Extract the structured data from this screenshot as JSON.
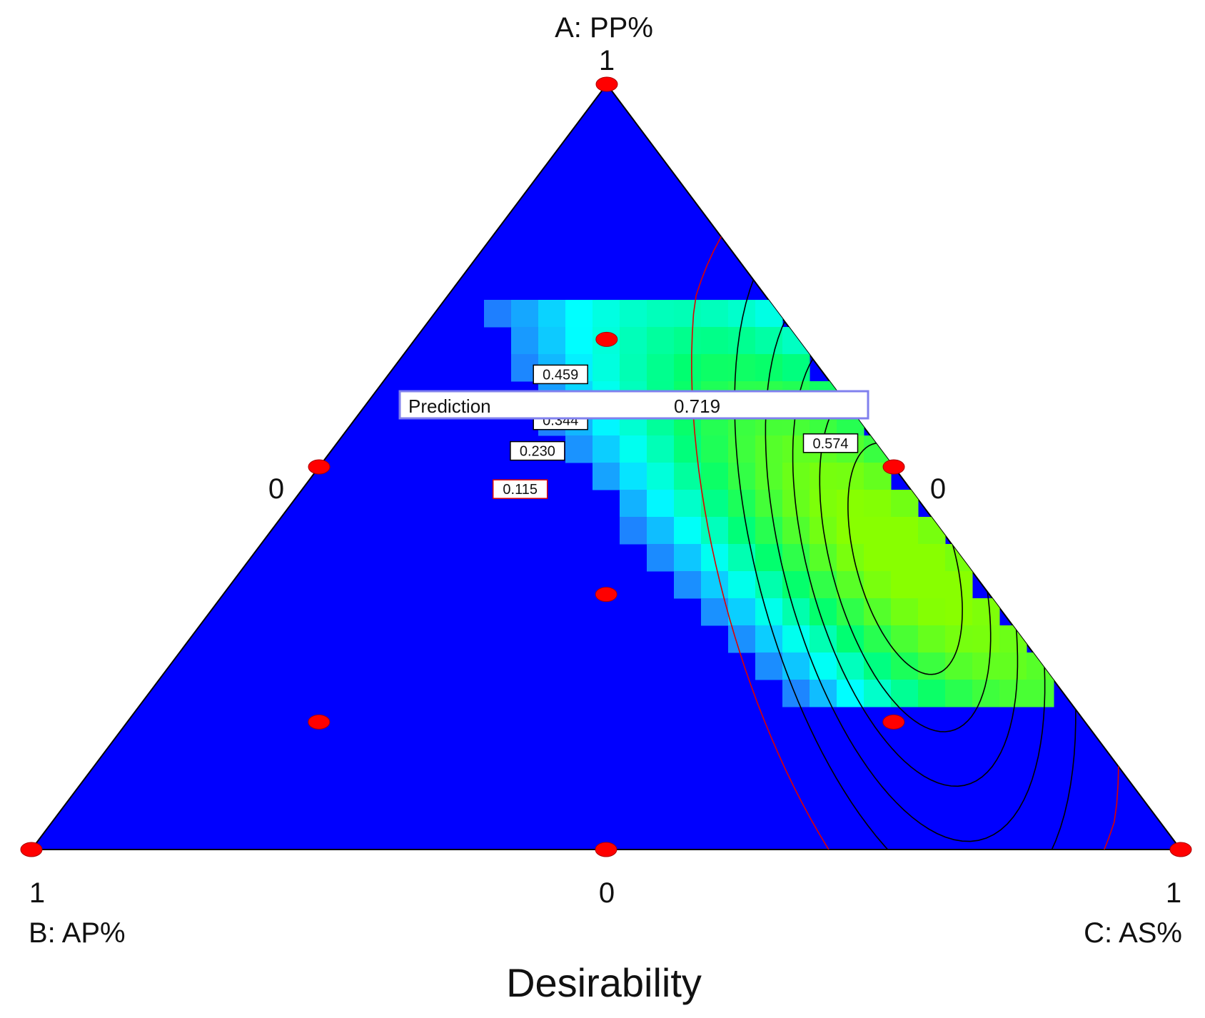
{
  "chart_data": {
    "type": "ternary-contour",
    "title": "Desirability",
    "vertices": {
      "top": {
        "name": "A: PP%",
        "max_label": "1"
      },
      "left": {
        "name": "B: AP%",
        "max_label": "1"
      },
      "right": {
        "name": "C: AS%",
        "max_label": "1"
      }
    },
    "edge_zero_labels": {
      "left_edge": "0",
      "right_edge": "0",
      "bottom_edge": "0"
    },
    "design_points": [
      {
        "A": 1.0,
        "B": 0.0,
        "C": 0.0
      },
      {
        "A": 0.0,
        "B": 1.0,
        "C": 0.0
      },
      {
        "A": 0.0,
        "B": 0.0,
        "C": 1.0
      },
      {
        "A": 0.5,
        "B": 0.5,
        "C": 0.0
      },
      {
        "A": 0.5,
        "B": 0.0,
        "C": 0.5
      },
      {
        "A": 0.0,
        "B": 0.5,
        "C": 0.5
      },
      {
        "A": 0.6667,
        "B": 0.1667,
        "C": 0.1667
      },
      {
        "A": 0.3333,
        "B": 0.3333,
        "C": 0.3333
      },
      {
        "A": 0.1667,
        "B": 0.6667,
        "C": 0.1667
      },
      {
        "A": 0.1667,
        "B": 0.1667,
        "C": 0.6667
      }
    ],
    "contour_labels": [
      {
        "value": "0.459",
        "A": 0.62,
        "B": 0.23,
        "C": 0.15
      },
      {
        "value": "0.344",
        "A": 0.56,
        "B": 0.26,
        "C": 0.18
      },
      {
        "value": "0.230",
        "A": 0.52,
        "B": 0.3,
        "C": 0.18
      },
      {
        "value": "0.115",
        "A": 0.47,
        "B": 0.34,
        "C": 0.19
      },
      {
        "value": "0.574",
        "A": 0.53,
        "B": 0.04,
        "C": 0.43
      }
    ],
    "prediction": {
      "label": "Prediction",
      "value": "0.719"
    },
    "colors": {
      "background": "#0000ff",
      "point": "#ff0000",
      "low": "#1f7cff",
      "mid": "#00ffff",
      "high": "#88ff00"
    }
  }
}
